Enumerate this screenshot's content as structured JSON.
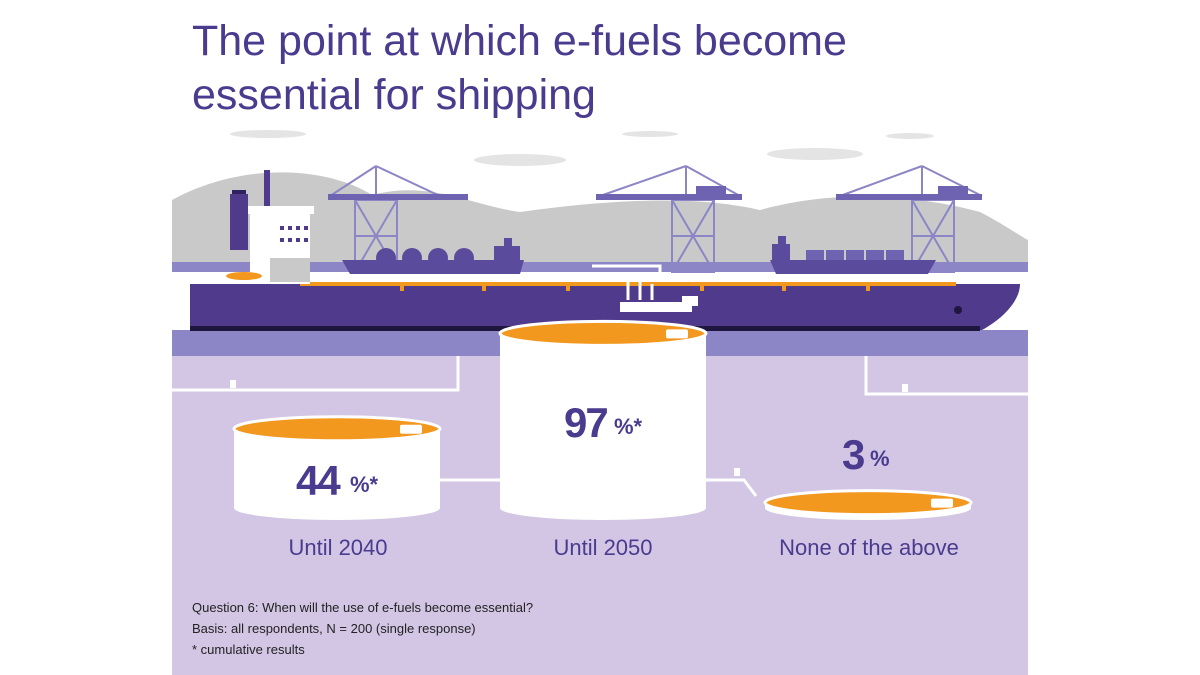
{
  "title": "The point at which e-fuels become essential for shipping",
  "colors": {
    "purple_dark": "#4a3b8f",
    "hull": "#4f3a8c",
    "lilac_panel": "#d2c6e4",
    "water": "#8c86c6",
    "tank_top": "#f2981f",
    "hills": "#c9c9c9"
  },
  "chart_data": {
    "type": "bar",
    "categories": [
      "Until 2040",
      "Until 2050",
      "None of the above"
    ],
    "values": [
      44,
      97,
      3
    ],
    "unit": "%",
    "series": [
      {
        "values": [
          44,
          97,
          3
        ]
      }
    ],
    "value_labels": [
      "44",
      "97",
      "3"
    ],
    "value_suffixes": [
      "%*",
      "%*",
      "%"
    ],
    "style": "pictorial storage tanks"
  },
  "footnotes": [
    "Question 6: When will the use of e-fuels become essential?",
    "Basis: all respondents, N = 200 (single response)",
    "* cumulative results"
  ]
}
